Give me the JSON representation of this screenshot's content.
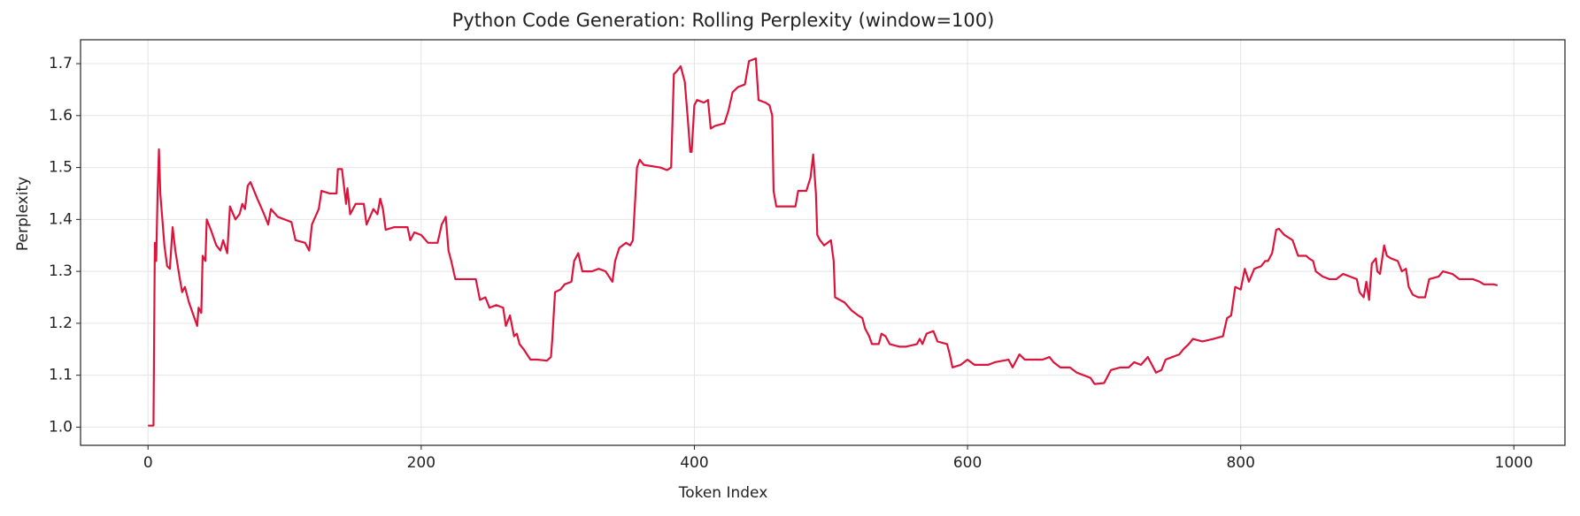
{
  "chart_data": {
    "type": "line",
    "title": "Python Code Generation: Rolling Perplexity (window=100)",
    "x_label": "Token Index",
    "y_label": "Perplexity",
    "xlim": [
      -49.4,
      1037.4
    ],
    "ylim": [
      0.965,
      1.746
    ],
    "xticks": [
      0,
      200,
      400,
      600,
      800,
      1000
    ],
    "yticks": [
      {
        "value": 1,
        "label": "1.0"
      },
      1.1,
      1.2,
      1.3,
      1.4,
      1.5,
      1.6,
      1.7
    ],
    "grid": true,
    "color": "#dc143c",
    "x": [
      0,
      4,
      5,
      6,
      7,
      8,
      9,
      12,
      14,
      16,
      18,
      20,
      23,
      25,
      27,
      30,
      36,
      37,
      39,
      40,
      42,
      43,
      46,
      50,
      53,
      55,
      58,
      60,
      64,
      67,
      69,
      71,
      73,
      75,
      80,
      85,
      88,
      90,
      95,
      100,
      105,
      108,
      115,
      118,
      120,
      125,
      127,
      133,
      138,
      139,
      142,
      145,
      146,
      148,
      152,
      158,
      160,
      165,
      168,
      170,
      172,
      174,
      180,
      185,
      190,
      192,
      195,
      200,
      205,
      212,
      215,
      218,
      220,
      222,
      225,
      240,
      243,
      247,
      250,
      255,
      260,
      262,
      265,
      268,
      270,
      272,
      275,
      280,
      285,
      292,
      295,
      296,
      298,
      302,
      305,
      310,
      312,
      315,
      318,
      325,
      330,
      335,
      340,
      342,
      345,
      350,
      353,
      355,
      358,
      360,
      363,
      375,
      380,
      383,
      385,
      387,
      390,
      393,
      395,
      397,
      398,
      400,
      402,
      407,
      410,
      412,
      415,
      422,
      425,
      428,
      432,
      437,
      440,
      445,
      447,
      452,
      455,
      457,
      458,
      460,
      470,
      474,
      476,
      482,
      485,
      487,
      489,
      490,
      492,
      495,
      500,
      502,
      503,
      510,
      515,
      520,
      523,
      525,
      528,
      530,
      535,
      537,
      540,
      543,
      550,
      555,
      563,
      565,
      567,
      570,
      575,
      578,
      585,
      587,
      589,
      595,
      600,
      605,
      615,
      620,
      630,
      633,
      638,
      642,
      655,
      660,
      663,
      668,
      675,
      680,
      685,
      690,
      693,
      700,
      703,
      705,
      712,
      718,
      722,
      727,
      732,
      735,
      738,
      742,
      745,
      750,
      755,
      758,
      762,
      765,
      772,
      780,
      787,
      790,
      793,
      796,
      800,
      803,
      806,
      810,
      815,
      818,
      820,
      823,
      826,
      828,
      832,
      838,
      842,
      848,
      850,
      853,
      855,
      860,
      865,
      870,
      875,
      880,
      885,
      887,
      890,
      892,
      894,
      896,
      899,
      900,
      902,
      905,
      907,
      910,
      915,
      918,
      921,
      923,
      926,
      930,
      935,
      938,
      945,
      948,
      955,
      960,
      970,
      975,
      978,
      985,
      988
    ],
    "values": [
      1.003,
      1.003,
      1.355,
      1.32,
      1.45,
      1.535,
      1.45,
      1.35,
      1.31,
      1.305,
      1.385,
      1.34,
      1.29,
      1.26,
      1.27,
      1.24,
      1.195,
      1.23,
      1.22,
      1.33,
      1.32,
      1.4,
      1.38,
      1.35,
      1.34,
      1.36,
      1.335,
      1.425,
      1.4,
      1.41,
      1.43,
      1.42,
      1.465,
      1.472,
      1.44,
      1.41,
      1.39,
      1.42,
      1.405,
      1.4,
      1.395,
      1.36,
      1.355,
      1.34,
      1.39,
      1.42,
      1.455,
      1.45,
      1.45,
      1.497,
      1.497,
      1.43,
      1.46,
      1.41,
      1.43,
      1.43,
      1.39,
      1.42,
      1.41,
      1.44,
      1.42,
      1.38,
      1.385,
      1.385,
      1.385,
      1.36,
      1.375,
      1.37,
      1.355,
      1.355,
      1.39,
      1.405,
      1.34,
      1.32,
      1.285,
      1.285,
      1.245,
      1.25,
      1.23,
      1.235,
      1.23,
      1.195,
      1.215,
      1.175,
      1.18,
      1.16,
      1.15,
      1.13,
      1.13,
      1.128,
      1.135,
      1.17,
      1.26,
      1.265,
      1.275,
      1.28,
      1.32,
      1.335,
      1.3,
      1.3,
      1.305,
      1.3,
      1.28,
      1.32,
      1.345,
      1.355,
      1.35,
      1.36,
      1.5,
      1.515,
      1.505,
      1.5,
      1.495,
      1.5,
      1.68,
      1.685,
      1.695,
      1.665,
      1.6,
      1.53,
      1.53,
      1.62,
      1.63,
      1.625,
      1.63,
      1.575,
      1.58,
      1.585,
      1.61,
      1.645,
      1.655,
      1.66,
      1.705,
      1.71,
      1.63,
      1.625,
      1.62,
      1.6,
      1.455,
      1.425,
      1.425,
      1.425,
      1.455,
      1.455,
      1.48,
      1.525,
      1.45,
      1.37,
      1.36,
      1.35,
      1.36,
      1.32,
      1.25,
      1.24,
      1.225,
      1.215,
      1.21,
      1.19,
      1.175,
      1.16,
      1.16,
      1.18,
      1.175,
      1.16,
      1.155,
      1.155,
      1.16,
      1.17,
      1.16,
      1.18,
      1.185,
      1.165,
      1.16,
      1.14,
      1.115,
      1.12,
      1.13,
      1.12,
      1.12,
      1.125,
      1.13,
      1.115,
      1.14,
      1.13,
      1.13,
      1.135,
      1.125,
      1.115,
      1.115,
      1.105,
      1.1,
      1.095,
      1.083,
      1.085,
      1.1,
      1.11,
      1.115,
      1.115,
      1.125,
      1.12,
      1.135,
      1.12,
      1.105,
      1.11,
      1.13,
      1.135,
      1.14,
      1.15,
      1.16,
      1.17,
      1.165,
      1.17,
      1.175,
      1.21,
      1.215,
      1.27,
      1.265,
      1.305,
      1.28,
      1.305,
      1.31,
      1.32,
      1.32,
      1.335,
      1.38,
      1.382,
      1.37,
      1.36,
      1.33,
      1.33,
      1.325,
      1.32,
      1.3,
      1.29,
      1.285,
      1.285,
      1.295,
      1.29,
      1.285,
      1.26,
      1.25,
      1.28,
      1.245,
      1.315,
      1.325,
      1.3,
      1.295,
      1.35,
      1.33,
      1.325,
      1.32,
      1.3,
      1.305,
      1.27,
      1.255,
      1.25,
      1.25,
      1.285,
      1.29,
      1.3,
      1.295,
      1.285,
      1.285,
      1.28,
      1.275,
      1.275,
      1.273
    ]
  }
}
